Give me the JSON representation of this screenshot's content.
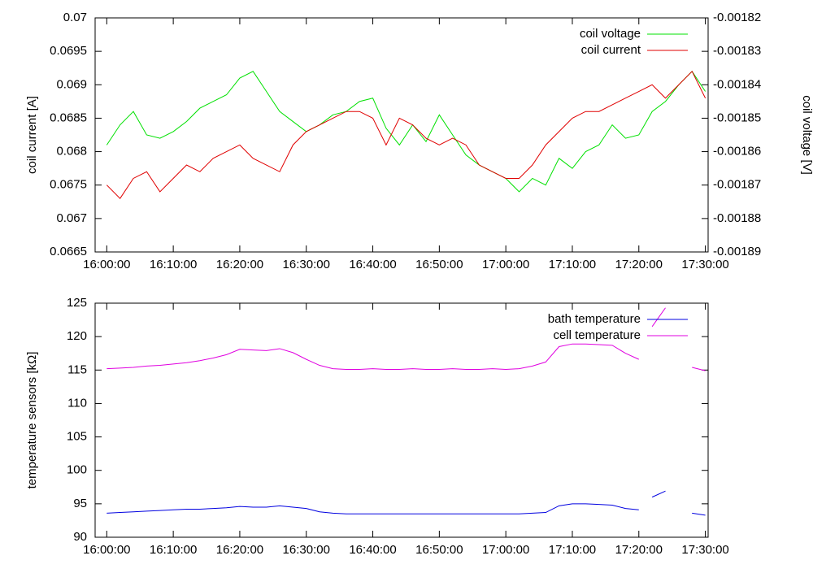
{
  "chart_data": [
    {
      "type": "line",
      "ylabel": "coil current [A]",
      "y2label": "coil voltage [V]",
      "x": [
        "16:00:00",
        "16:02:00",
        "16:04:00",
        "16:06:00",
        "16:08:00",
        "16:10:00",
        "16:12:00",
        "16:14:00",
        "16:16:00",
        "16:18:00",
        "16:20:00",
        "16:22:00",
        "16:24:00",
        "16:26:00",
        "16:28:00",
        "16:30:00",
        "16:32:00",
        "16:34:00",
        "16:36:00",
        "16:38:00",
        "16:40:00",
        "16:42:00",
        "16:44:00",
        "16:46:00",
        "16:48:00",
        "16:50:00",
        "16:52:00",
        "16:54:00",
        "16:56:00",
        "16:58:00",
        "17:00:00",
        "17:02:00",
        "17:04:00",
        "17:06:00",
        "17:08:00",
        "17:10:00",
        "17:12:00",
        "17:14:00",
        "17:16:00",
        "17:18:00",
        "17:20:00",
        "17:22:00",
        "17:24:00",
        "17:26:00",
        "17:28:00",
        "17:30:00"
      ],
      "xlim": [
        "15:58:15",
        "17:30:25"
      ],
      "xticks": [
        "16:00:00",
        "16:10:00",
        "16:20:00",
        "16:30:00",
        "16:40:00",
        "16:50:00",
        "17:00:00",
        "17:10:00",
        "17:20:00",
        "17:30:00"
      ],
      "ylim": [
        0.0665,
        0.07
      ],
      "yticks": [
        0.0665,
        0.067,
        0.0675,
        0.068,
        0.0685,
        0.069,
        0.0695,
        0.07
      ],
      "y2lim": [
        -0.00189,
        -0.00182
      ],
      "y2ticks": [
        -0.00189,
        -0.00188,
        -0.00187,
        -0.00186,
        -0.00185,
        -0.00184,
        -0.00183,
        -0.00182
      ],
      "legend": "upper right",
      "series": [
        {
          "name": "coil voltage",
          "color": "#00e000",
          "axis": "y2",
          "values": [
            -0.001858,
            -0.001852,
            -0.001848,
            -0.001855,
            -0.001856,
            -0.001854,
            -0.001851,
            -0.001847,
            -0.001845,
            -0.001843,
            -0.001838,
            -0.001836,
            -0.001842,
            -0.001848,
            -0.001851,
            -0.001854,
            -0.001852,
            -0.001849,
            -0.001848,
            -0.001845,
            -0.001844,
            -0.001853,
            -0.001858,
            -0.001852,
            -0.001857,
            -0.001849,
            -0.001855,
            -0.001861,
            -0.001864,
            -0.001866,
            -0.001868,
            -0.001872,
            -0.001868,
            -0.00187,
            -0.001862,
            -0.001865,
            -0.00186,
            -0.001858,
            -0.001852,
            -0.001856,
            -0.001855,
            -0.001848,
            -0.001845,
            -0.00184,
            -0.001836,
            -0.001842
          ]
        },
        {
          "name": "coil current",
          "color": "#e00000",
          "values": [
            0.0675,
            0.0673,
            0.0676,
            0.0677,
            0.0674,
            0.0676,
            0.0678,
            0.0677,
            0.0679,
            0.068,
            0.0681,
            0.0679,
            0.0678,
            0.0677,
            0.0681,
            0.0683,
            0.0684,
            0.0685,
            0.0686,
            0.0686,
            0.0685,
            0.0681,
            0.0685,
            0.0684,
            0.0682,
            0.0681,
            0.0682,
            0.0681,
            0.0678,
            0.0677,
            0.0676,
            0.0676,
            0.0678,
            0.0681,
            0.0683,
            0.0685,
            0.0686,
            0.0686,
            0.0687,
            0.0688,
            0.0689,
            0.069,
            0.0688,
            0.069,
            0.0692,
            0.0688
          ]
        }
      ]
    },
    {
      "type": "line",
      "ylabel": "temperature sensors [kΩ]",
      "x": [
        "16:00:00",
        "16:02:00",
        "16:04:00",
        "16:06:00",
        "16:08:00",
        "16:10:00",
        "16:12:00",
        "16:14:00",
        "16:16:00",
        "16:18:00",
        "16:20:00",
        "16:22:00",
        "16:24:00",
        "16:26:00",
        "16:28:00",
        "16:30:00",
        "16:32:00",
        "16:34:00",
        "16:36:00",
        "16:38:00",
        "16:40:00",
        "16:42:00",
        "16:44:00",
        "16:46:00",
        "16:48:00",
        "16:50:00",
        "16:52:00",
        "16:54:00",
        "16:56:00",
        "16:58:00",
        "17:00:00",
        "17:02:00",
        "17:04:00",
        "17:06:00",
        "17:08:00",
        "17:10:00",
        "17:12:00",
        "17:14:00",
        "17:16:00",
        "17:18:00",
        "17:20:00",
        "17:21:00",
        "17:22:00",
        "17:24:00",
        "17:26:00",
        "17:28:00",
        "17:30:00"
      ],
      "xlim": [
        "15:58:15",
        "17:30:25"
      ],
      "xticks": [
        "16:00:00",
        "16:10:00",
        "16:20:00",
        "16:30:00",
        "16:40:00",
        "16:50:00",
        "17:00:00",
        "17:10:00",
        "17:20:00",
        "17:30:00"
      ],
      "ylim": [
        90,
        125
      ],
      "yticks": [
        90,
        95,
        100,
        105,
        110,
        115,
        120,
        125
      ],
      "legend": "upper right",
      "series": [
        {
          "name": "bath temperature",
          "color": "#0000e0",
          "values": [
            93.6,
            93.7,
            93.8,
            93.9,
            94.0,
            94.1,
            94.2,
            94.2,
            94.3,
            94.4,
            94.6,
            94.5,
            94.5,
            94.7,
            94.5,
            94.3,
            93.8,
            93.6,
            93.5,
            93.5,
            93.5,
            93.5,
            93.5,
            93.5,
            93.5,
            93.5,
            93.5,
            93.5,
            93.5,
            93.5,
            93.5,
            93.5,
            93.6,
            93.7,
            94.7,
            95.0,
            95.0,
            94.9,
            94.8,
            94.3,
            94.1,
            null,
            96.0,
            96.9,
            null,
            93.6,
            93.3
          ]
        },
        {
          "name": "cell temperature",
          "color": "#e000e0",
          "values": [
            115.2,
            115.3,
            115.4,
            115.6,
            115.7,
            115.9,
            116.1,
            116.4,
            116.8,
            117.3,
            118.1,
            118.0,
            117.9,
            118.2,
            117.6,
            116.6,
            115.7,
            115.2,
            115.1,
            115.1,
            115.2,
            115.1,
            115.1,
            115.2,
            115.1,
            115.1,
            115.2,
            115.1,
            115.1,
            115.2,
            115.1,
            115.2,
            115.6,
            116.2,
            118.5,
            118.9,
            118.9,
            118.8,
            118.7,
            117.5,
            116.6,
            null,
            121.5,
            124.3,
            null,
            115.4,
            114.9
          ]
        }
      ]
    }
  ]
}
